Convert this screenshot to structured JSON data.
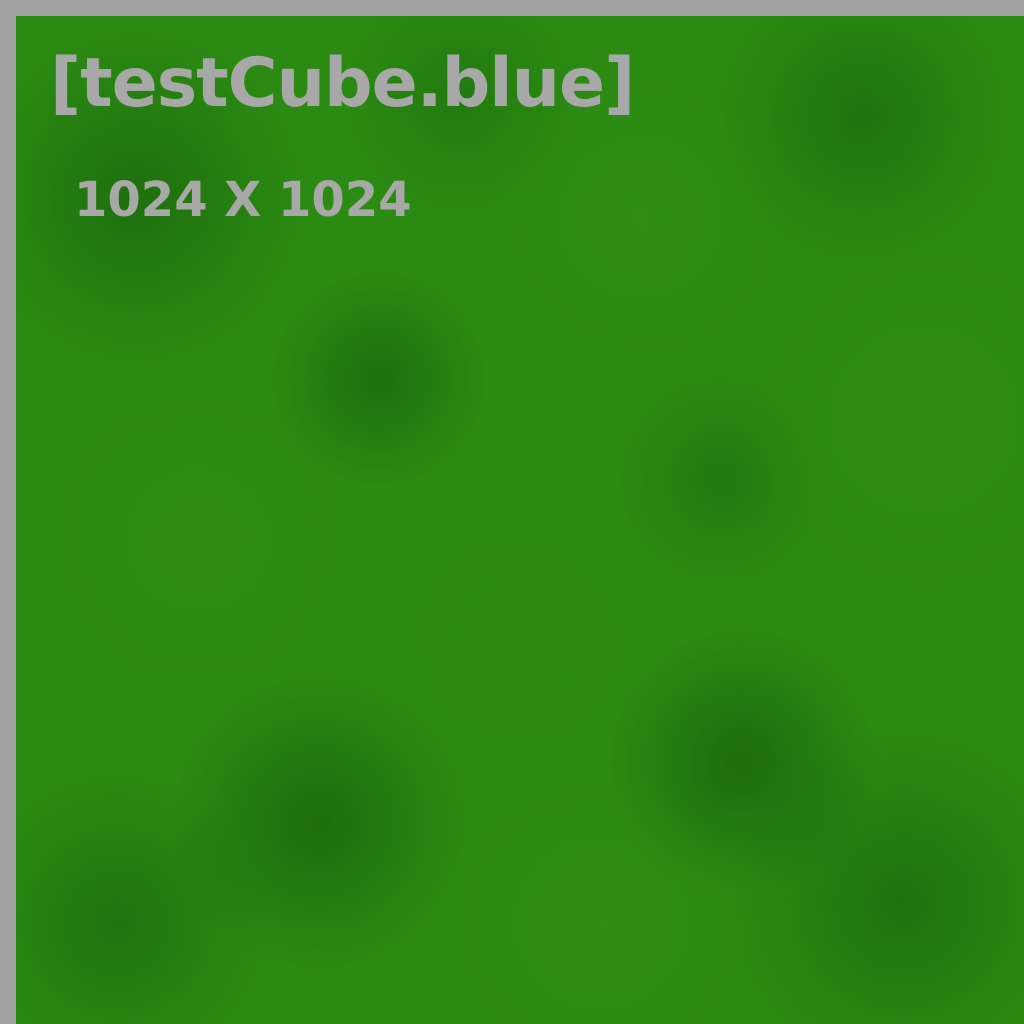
{
  "texture": {
    "title": "[testCube.blue]",
    "dimensions": "1024 X 1024",
    "colors": {
      "border": "#a2a2a2",
      "base": "#2b8a12",
      "text": "#a8a8a8"
    }
  }
}
